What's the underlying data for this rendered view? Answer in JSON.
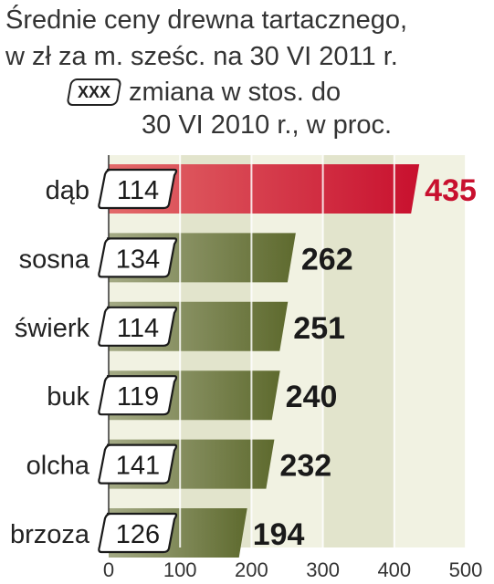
{
  "chart_data": {
    "type": "bar",
    "orientation": "horizontal",
    "title_lines": [
      "Średnie ceny drewna tartacznego,",
      "w zł za m. sześc. na 30 VI 2011 r."
    ],
    "legend": {
      "box_label": "XXX",
      "text_line1": "zmiana w stos. do",
      "text_line2": "30 VI 2010 r., w proc."
    },
    "categories": [
      "dąb",
      "sosna",
      "świerk",
      "buk",
      "olcha",
      "brzoza"
    ],
    "values": [
      435,
      262,
      251,
      240,
      232,
      194
    ],
    "change_pct": [
      114,
      134,
      114,
      119,
      141,
      126
    ],
    "xlim": [
      0,
      500
    ],
    "xticks": [
      0,
      100,
      200,
      300,
      400,
      500
    ],
    "highlight_index": 0,
    "colors": {
      "highlight_bar": "#c8102e",
      "highlight_bar_light": "#e36a6a",
      "highlight_value": "#c8102e",
      "bar": "#5e6a2e",
      "bar_light": "#a4aa85",
      "band_light": "#f1f2e2",
      "band_dark": "#e2e4cc",
      "value_text": "#1a1a1a"
    }
  }
}
